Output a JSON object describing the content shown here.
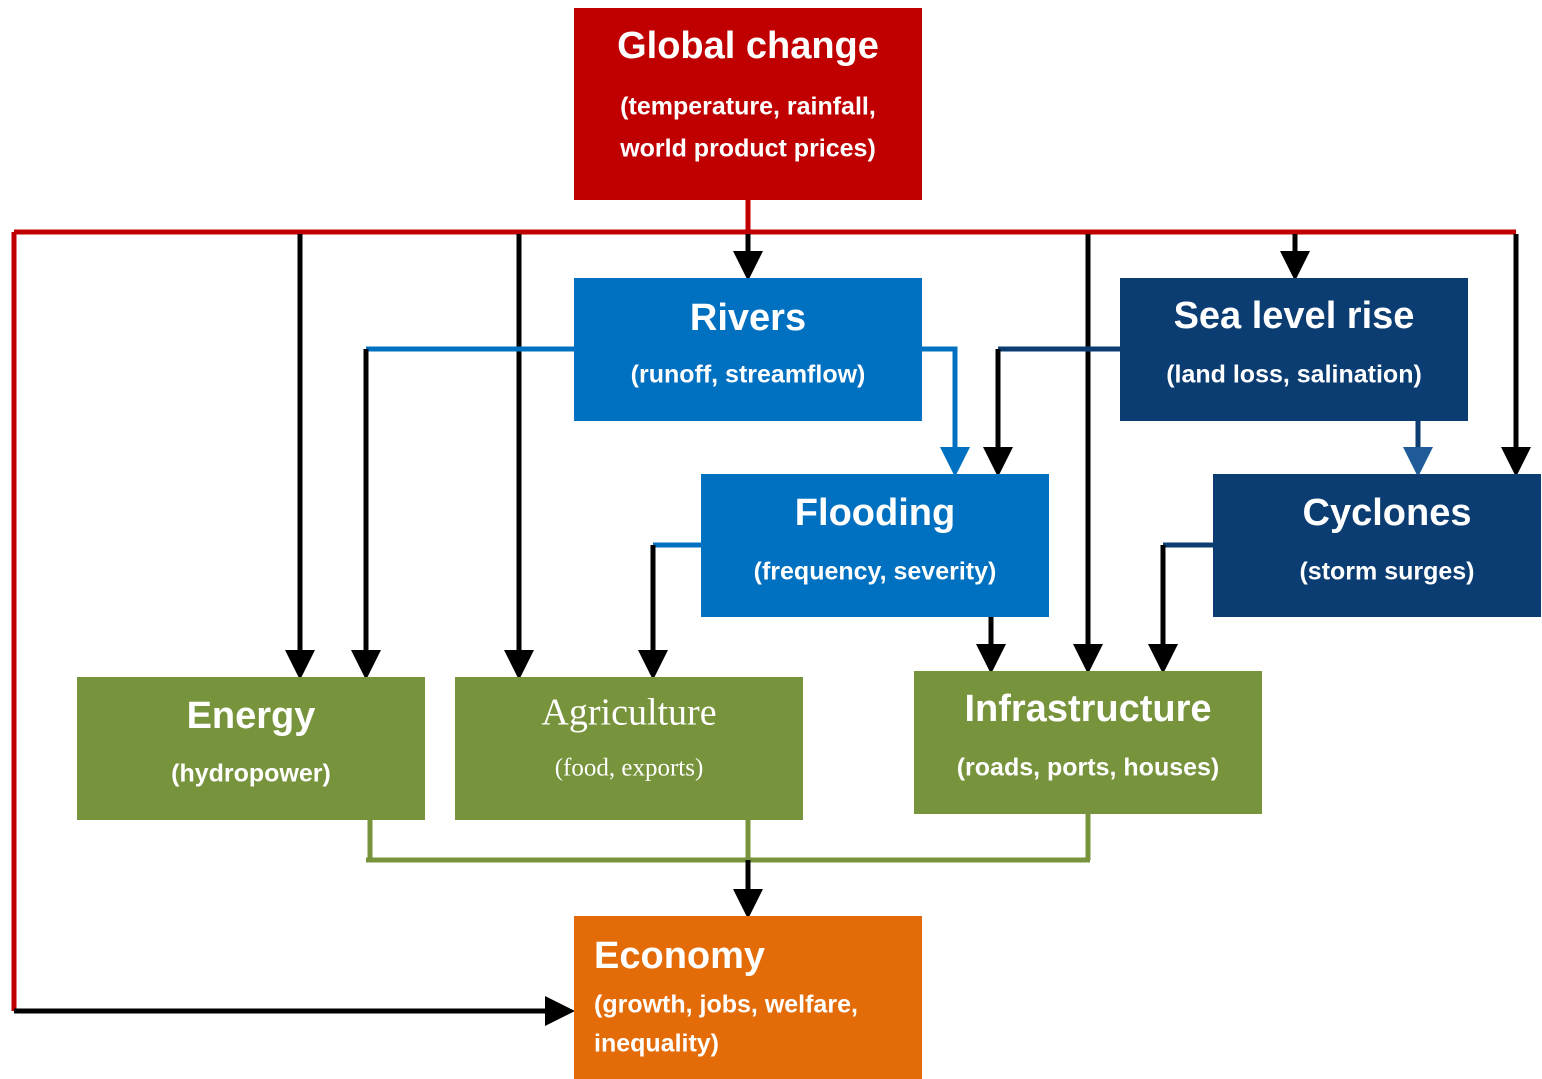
{
  "nodes": [
    {
      "title": "Global change",
      "subtitle": [
        "(temperature, rainfall,",
        "world product prices)"
      ]
    },
    {
      "title": "Rivers",
      "subtitle": [
        "(runoff, streamflow)"
      ]
    },
    {
      "title": "Sea level rise",
      "subtitle": [
        "(land loss, salination)"
      ]
    },
    {
      "title": "Flooding",
      "subtitle": [
        "(frequency, severity)"
      ]
    },
    {
      "title": "Cyclones",
      "subtitle": [
        "(storm surges)"
      ]
    },
    {
      "title": "Energy",
      "subtitle": [
        "(hydropower)"
      ]
    },
    {
      "title": "Agriculture",
      "subtitle": [
        "(food, exports)"
      ]
    },
    {
      "title": "Infrastructure",
      "subtitle": [
        "(roads, ports, houses)"
      ]
    },
    {
      "title": "Economy",
      "subtitle": [
        "(growth, jobs, welfare,",
        "inequality)"
      ]
    }
  ]
}
